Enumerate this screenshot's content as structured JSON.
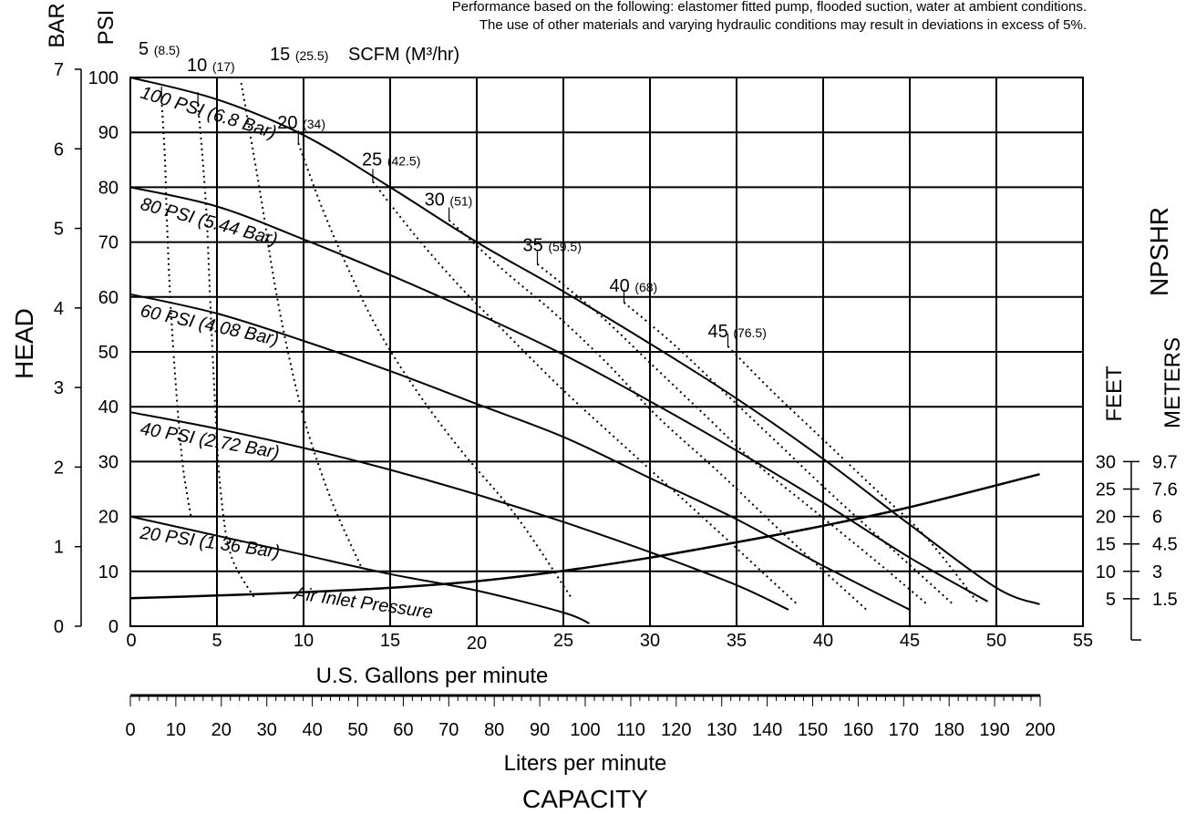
{
  "header_notes": [
    "Performance based on the following: elastomer fitted pump, flooded suction, water at ambient conditions.",
    "The use of other materials and varying hydraulic conditions may result in deviations in excess of 5%."
  ],
  "chart_data": {
    "type": "line",
    "title": "",
    "xlabel": "U.S. Gallons per minute",
    "x2label": "Liters per minute",
    "capacity_label": "CAPACITY",
    "ylabel": "HEAD",
    "bar_label": "BAR",
    "psi_label": "PSI",
    "npshr_label": "NPSHR",
    "feet_label": "FEET",
    "meters_label": "METERS",
    "scfm_label": "SCFM (M³/hr)",
    "xlim": [
      0,
      55
    ],
    "ylim": [
      0,
      100
    ],
    "x_ticks": [
      0,
      5,
      10,
      15,
      20,
      25,
      30,
      35,
      40,
      45,
      50,
      55
    ],
    "psi_ticks": [
      0,
      10,
      20,
      30,
      40,
      50,
      60,
      70,
      80,
      90,
      100
    ],
    "bar_ticks": [
      0,
      1,
      2,
      3,
      4,
      5,
      6,
      7
    ],
    "lpm_ticks": [
      0,
      10,
      20,
      30,
      40,
      50,
      60,
      70,
      80,
      90,
      100,
      110,
      120,
      130,
      140,
      150,
      160,
      170,
      180,
      190,
      200
    ],
    "npsh_feet_ticks": [
      5,
      10,
      15,
      20,
      25,
      30
    ],
    "npsh_meter_ticks": [
      "1.5",
      "3",
      "4.5",
      "6",
      "7.6",
      "9.7"
    ],
    "grid": true,
    "pressure_curves": [
      {
        "label": "100 PSI (6.8 Bar)",
        "x": [
          0,
          5,
          10,
          15,
          20,
          25,
          30,
          35,
          40,
          45,
          50,
          52.5
        ],
        "y": [
          100,
          96,
          89.5,
          80,
          70,
          61,
          51.5,
          41.5,
          30.5,
          18.5,
          7,
          4
        ]
      },
      {
        "label": "80 PSI (5.44 Bar)",
        "x": [
          0,
          5,
          10,
          15,
          20,
          25,
          30,
          35,
          40,
          45,
          49.5
        ],
        "y": [
          80,
          76.5,
          70.5,
          64,
          57,
          49.5,
          41,
          32,
          22.5,
          12.5,
          4.5
        ]
      },
      {
        "label": "60 PSI (4.08 Bar)",
        "x": [
          0,
          5,
          10,
          15,
          20,
          25,
          30,
          35,
          40,
          45
        ],
        "y": [
          60.5,
          57,
          52,
          46.5,
          40.5,
          34.5,
          27,
          19.5,
          11,
          3
        ]
      },
      {
        "label": "40 PSI (2.72 Bar)",
        "x": [
          0,
          5,
          10,
          15,
          20,
          25,
          30,
          35,
          38
        ],
        "y": [
          39,
          36,
          32.5,
          28.5,
          24,
          19,
          13.5,
          7.5,
          3
        ]
      },
      {
        "label": "20 PSI (1.36 Bar)",
        "x": [
          0,
          5,
          10,
          15,
          20,
          25,
          26.5
        ],
        "y": [
          20,
          16.5,
          13,
          9.5,
          6.5,
          2.5,
          0.5
        ]
      }
    ],
    "air_curves": [
      {
        "label": "5",
        "label2": "(8.5)",
        "x": [
          1.8,
          2.0,
          2.1,
          2.3,
          2.6,
          3.0,
          3.5
        ],
        "y": [
          96,
          85,
          75,
          60,
          45,
          30,
          20
        ]
      },
      {
        "label": "10",
        "label2": "(17)",
        "x": [
          3.9,
          4.1,
          4.4,
          4.6,
          4.9,
          5.2,
          5.8,
          7.2
        ],
        "y": [
          95,
          88,
          75,
          60,
          40,
          25,
          13,
          5
        ]
      },
      {
        "label": "15",
        "label2": "(25.5)",
        "x": [
          6.4,
          6.9,
          7.6,
          8.3,
          9.1,
          10.1,
          11.6,
          13.3
        ],
        "y": [
          99,
          90,
          77,
          63,
          50,
          37,
          23,
          11
        ]
      },
      {
        "label": "20",
        "label2": "(34)",
        "x": [
          9.7,
          11.1,
          12.6,
          14.3,
          16.5,
          19.1,
          22.3,
          25.5
        ],
        "y": [
          88,
          76,
          65,
          54,
          43,
          32,
          20,
          5
        ]
      },
      {
        "label": "25",
        "label2": "(42.5)",
        "x": [
          14,
          16.5,
          19,
          21.5,
          25,
          29.5,
          33,
          38.5
        ],
        "y": [
          81,
          71,
          62,
          54,
          43,
          30,
          20,
          4
        ]
      },
      {
        "label": "30",
        "label2": "(51)",
        "x": [
          18.4,
          21.5,
          24.5,
          27.5,
          30.5,
          34,
          38,
          42.5
        ],
        "y": [
          74,
          65,
          57,
          48,
          38,
          28,
          16,
          3
        ]
      },
      {
        "label": "35",
        "label2": "(59.5)",
        "x": [
          23.5,
          27,
          30,
          33,
          36,
          39.5,
          43,
          46
        ],
        "y": [
          66,
          57,
          48,
          39,
          30,
          21,
          12,
          4
        ]
      },
      {
        "label": "40",
        "label2": "(68)",
        "x": [
          28.5,
          31.5,
          34.5,
          37.5,
          40.5,
          44,
          47.5
        ],
        "y": [
          59,
          51,
          42,
          33,
          24,
          14,
          4
        ]
      },
      {
        "label": "45",
        "label2": "(76.5)",
        "x": [
          34.5,
          37,
          40,
          43,
          46,
          49
        ],
        "y": [
          51,
          43,
          34,
          25,
          16,
          4
        ]
      }
    ],
    "npshr_curve": {
      "x": [
        0,
        5,
        10,
        15,
        20,
        25,
        30,
        35,
        40,
        45,
        52.5
      ],
      "y": [
        5.1,
        5.6,
        6.2,
        7.0,
        8.2,
        10.1,
        12.5,
        15.3,
        18.3,
        21.7,
        27.7
      ]
    },
    "annotations": [
      "Air Inlet Pressure"
    ]
  }
}
